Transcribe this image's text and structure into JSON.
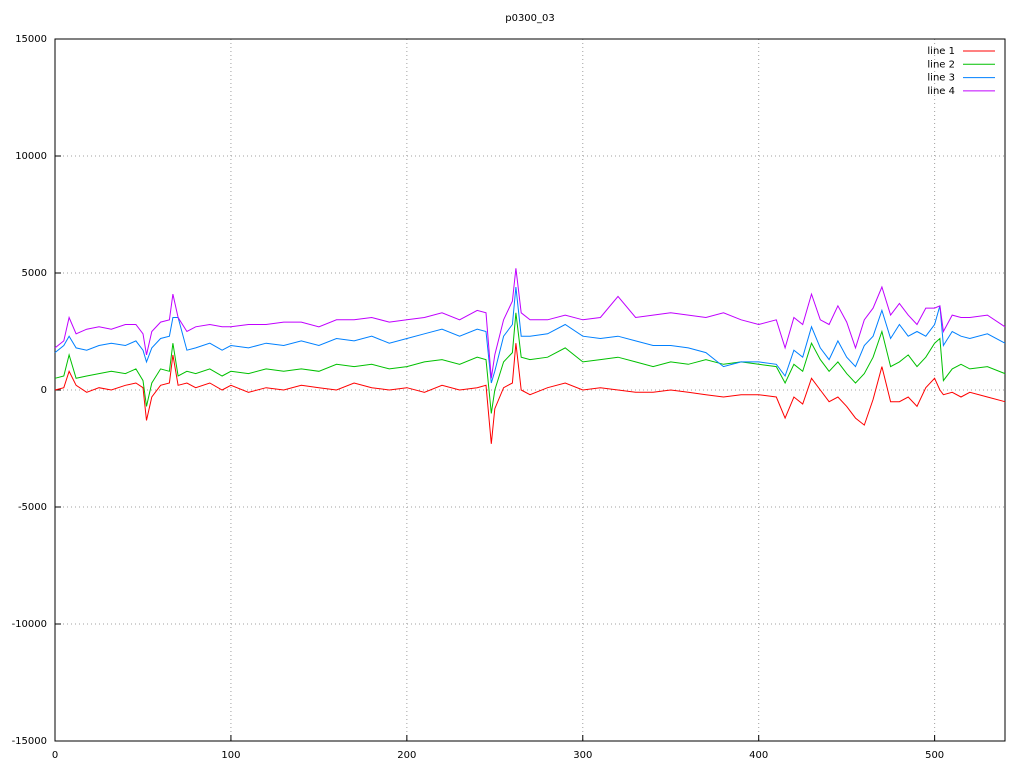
{
  "chart_data": {
    "type": "line",
    "title": "p0300_03",
    "x": [
      0,
      5,
      8,
      12,
      18,
      25,
      32,
      40,
      46,
      50,
      52,
      55,
      60,
      65,
      67,
      70,
      75,
      80,
      88,
      95,
      100,
      110,
      120,
      130,
      140,
      150,
      160,
      170,
      180,
      190,
      200,
      210,
      220,
      230,
      240,
      245,
      248,
      250,
      255,
      260,
      262,
      265,
      270,
      280,
      290,
      300,
      310,
      320,
      330,
      340,
      350,
      360,
      370,
      380,
      390,
      400,
      410,
      415,
      420,
      425,
      430,
      435,
      440,
      445,
      450,
      455,
      460,
      465,
      470,
      475,
      480,
      485,
      490,
      495,
      500,
      503,
      505,
      510,
      515,
      520,
      530,
      540
    ],
    "series": [
      {
        "name": "line 1",
        "color": "#ff0000",
        "values": [
          0,
          100,
          800,
          200,
          -100,
          100,
          0,
          200,
          300,
          100,
          -1300,
          -300,
          200,
          300,
          1500,
          200,
          300,
          100,
          300,
          0,
          200,
          -100,
          100,
          0,
          200,
          100,
          0,
          300,
          100,
          0,
          100,
          -100,
          200,
          0,
          100,
          200,
          -2300,
          -800,
          100,
          300,
          2000,
          0,
          -200,
          100,
          300,
          0,
          100,
          0,
          -100,
          -100,
          0,
          -100,
          -200,
          -300,
          -200,
          -200,
          -300,
          -1200,
          -300,
          -600,
          500,
          0,
          -500,
          -300,
          -700,
          -1200,
          -1500,
          -400,
          1000,
          -500,
          -500,
          -300,
          -700,
          100,
          500,
          0,
          -200,
          -100,
          -300,
          -100,
          -300,
          -500
        ]
      },
      {
        "name": "line 2",
        "color": "#00c000",
        "values": [
          500,
          600,
          1500,
          500,
          600,
          700,
          800,
          700,
          900,
          400,
          -700,
          300,
          900,
          800,
          2000,
          600,
          800,
          700,
          900,
          600,
          800,
          700,
          900,
          800,
          900,
          800,
          1100,
          1000,
          1100,
          900,
          1000,
          1200,
          1300,
          1100,
          1400,
          1300,
          -1000,
          0,
          1200,
          1600,
          3300,
          1400,
          1300,
          1400,
          1800,
          1200,
          1300,
          1400,
          1200,
          1000,
          1200,
          1100,
          1300,
          1100,
          1200,
          1100,
          1000,
          300,
          1100,
          800,
          2000,
          1300,
          800,
          1200,
          700,
          300,
          700,
          1400,
          2500,
          1000,
          1200,
          1500,
          1000,
          1400,
          2000,
          2200,
          400,
          900,
          1100,
          900,
          1000,
          700
        ]
      },
      {
        "name": "line 3",
        "color": "#0080ff",
        "values": [
          1600,
          1900,
          2300,
          1800,
          1700,
          1900,
          2000,
          1900,
          2100,
          1700,
          1200,
          1800,
          2200,
          2300,
          3100,
          3100,
          1700,
          1800,
          2000,
          1700,
          1900,
          1800,
          2000,
          1900,
          2100,
          1900,
          2200,
          2100,
          2300,
          2000,
          2200,
          2400,
          2600,
          2300,
          2600,
          2500,
          300,
          800,
          2300,
          2800,
          4400,
          2300,
          2300,
          2400,
          2800,
          2300,
          2200,
          2300,
          2100,
          1900,
          1900,
          1800,
          1600,
          1000,
          1200,
          1200,
          1100,
          600,
          1700,
          1400,
          2700,
          1800,
          1300,
          2100,
          1400,
          1000,
          1900,
          2300,
          3400,
          2200,
          2800,
          2300,
          2500,
          2300,
          2800,
          3600,
          1900,
          2500,
          2300,
          2200,
          2400,
          2000
        ]
      },
      {
        "name": "line 4",
        "color": "#c000ff",
        "values": [
          1800,
          2100,
          3100,
          2400,
          2600,
          2700,
          2600,
          2800,
          2800,
          2400,
          1500,
          2500,
          2900,
          3000,
          4100,
          3100,
          2500,
          2700,
          2800,
          2700,
          2700,
          2800,
          2800,
          2900,
          2900,
          2700,
          3000,
          3000,
          3100,
          2900,
          3000,
          3100,
          3300,
          3000,
          3400,
          3300,
          500,
          1500,
          3000,
          3800,
          5200,
          3300,
          3000,
          3000,
          3200,
          3000,
          3100,
          4000,
          3100,
          3200,
          3300,
          3200,
          3100,
          3300,
          3000,
          2800,
          3000,
          1800,
          3100,
          2800,
          4100,
          3000,
          2800,
          3600,
          2900,
          1800,
          3000,
          3500,
          4400,
          3200,
          3700,
          3200,
          2800,
          3500,
          3500,
          3600,
          2500,
          3200,
          3100,
          3100,
          3200,
          2700
        ]
      }
    ],
    "xlim": [
      0,
      540
    ],
    "xticks": [
      0,
      100,
      200,
      300,
      400,
      500
    ],
    "ylim": [
      -15000,
      15000
    ],
    "yticks": [
      -15000,
      -10000,
      -5000,
      0,
      5000,
      10000,
      15000
    ],
    "grid": true,
    "legend": "top-right"
  }
}
